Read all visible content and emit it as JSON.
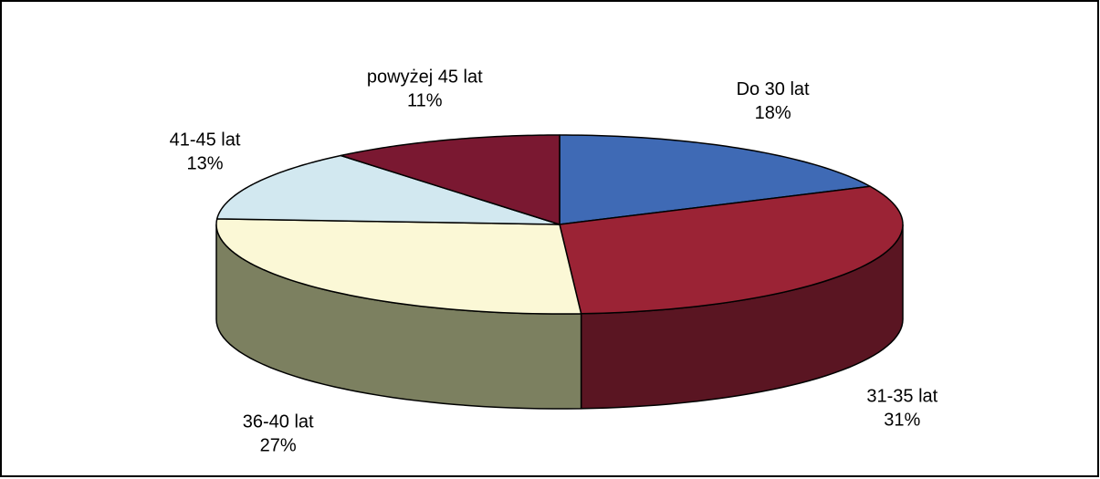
{
  "chart_data": {
    "type": "pie",
    "style": "3d-exploded-none",
    "title": "",
    "legend": "none",
    "start_category": "Do 30 lat",
    "direction": "clockwise",
    "slices": [
      {
        "name": "Do 30 lat",
        "percent_label": "18%",
        "value": 18,
        "color": "#3f6ab5"
      },
      {
        "name": "31-35 lat",
        "percent_label": "31%",
        "value": 31,
        "color": "#9b2335"
      },
      {
        "name": "36-40 lat",
        "percent_label": "27%",
        "value": 27,
        "color": "#79805c"
      },
      {
        "name": "41-45 lat",
        "percent_label": "13%",
        "value": 13,
        "color": "#fbf8d6"
      },
      {
        "name": "powyżej 45 lat",
        "percent_label": "11%",
        "value": 11,
        "color": "#7a1831"
      }
    ],
    "slice_fill_overrides": {
      "41-45 lat": "#d2e8f0",
      "36-40 lat": "#fbf8d6",
      "powyżej 45 lat": "#7a1831"
    },
    "side_colors": {
      "Do 30 lat": "#2e4f8c",
      "31-35 lat": "#5a1522",
      "36-40 lat": "#7c8060",
      "41-45 lat": "#d9d6b3",
      "powyżej 45 lat": "#5a1022"
    }
  }
}
